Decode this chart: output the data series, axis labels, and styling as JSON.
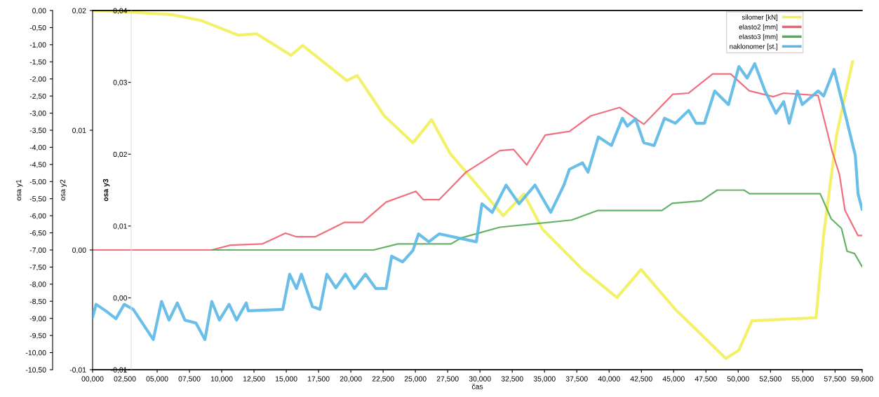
{
  "chart_data": {
    "type": "line",
    "xlabel": "čas",
    "ylabel": "osa y1",
    "y2label": "osa y2",
    "y3label": "osa y3",
    "xlim": [
      0,
      59600
    ],
    "xticks": [
      {
        "value": 0,
        "label": "00,000"
      },
      {
        "value": 2500,
        "label": "02,500"
      },
      {
        "value": 5000,
        "label": "05,000"
      },
      {
        "value": 7500,
        "label": "07,500"
      },
      {
        "value": 10000,
        "label": "10,000"
      },
      {
        "value": 12500,
        "label": "12,500"
      },
      {
        "value": 15000,
        "label": "15,000"
      },
      {
        "value": 17500,
        "label": "17,500"
      },
      {
        "value": 20000,
        "label": "20,000"
      },
      {
        "value": 22500,
        "label": "22,500"
      },
      {
        "value": 25000,
        "label": "25,000"
      },
      {
        "value": 27500,
        "label": "27,500"
      },
      {
        "value": 30000,
        "label": "30,000"
      },
      {
        "value": 32500,
        "label": "32,500"
      },
      {
        "value": 35000,
        "label": "35,000"
      },
      {
        "value": 37500,
        "label": "37,500"
      },
      {
        "value": 40000,
        "label": "40,000"
      },
      {
        "value": 42500,
        "label": "42,500"
      },
      {
        "value": 45000,
        "label": "45,000"
      },
      {
        "value": 47500,
        "label": "47,500"
      },
      {
        "value": 50000,
        "label": "50,000"
      },
      {
        "value": 52500,
        "label": "52,500"
      },
      {
        "value": 55000,
        "label": "55,000"
      },
      {
        "value": 57500,
        "label": "57,500"
      },
      {
        "value": 59600,
        "label": "59,600"
      }
    ],
    "ylim": [
      -10.5,
      0
    ],
    "yticks": [
      {
        "value": 0,
        "label": "0,00"
      },
      {
        "value": -0.5,
        "label": "-0,50"
      },
      {
        "value": -1,
        "label": "-1,00"
      },
      {
        "value": -1.5,
        "label": "-1,50"
      },
      {
        "value": -2,
        "label": "-2,00"
      },
      {
        "value": -2.5,
        "label": "-2,50"
      },
      {
        "value": -3,
        "label": "-3,00"
      },
      {
        "value": -3.5,
        "label": "-3,50"
      },
      {
        "value": -4,
        "label": "-4,00"
      },
      {
        "value": -4.5,
        "label": "-4,50"
      },
      {
        "value": -5,
        "label": "-5,00"
      },
      {
        "value": -5.5,
        "label": "-5,50"
      },
      {
        "value": -6,
        "label": "-6,00"
      },
      {
        "value": -6.5,
        "label": "-6,50"
      },
      {
        "value": -7,
        "label": "-7,00"
      },
      {
        "value": -7.5,
        "label": "-7,50"
      },
      {
        "value": -8,
        "label": "-8,00"
      },
      {
        "value": -8.5,
        "label": "-8,50"
      },
      {
        "value": -9,
        "label": "-9,00"
      },
      {
        "value": -9.5,
        "label": "-9,50"
      },
      {
        "value": -10,
        "label": "-10,00"
      },
      {
        "value": -10.5,
        "label": "-10,50"
      }
    ],
    "y2lim": [
      -0.01,
      0.02
    ],
    "y2ticks": [
      {
        "value": 0.02,
        "label": "0,02"
      },
      {
        "value": 0.01,
        "label": "0,01"
      },
      {
        "value": 0,
        "label": "0,00"
      },
      {
        "value": -0.01,
        "label": "-0,01"
      }
    ],
    "y3lim": [
      -0.01,
      0.04
    ],
    "y3ticks": [
      {
        "value": 0.04,
        "label": "0,04"
      },
      {
        "value": 0.03,
        "label": "0,03"
      },
      {
        "value": 0.02,
        "label": "0,02"
      },
      {
        "value": 0.01,
        "label": "0,01"
      },
      {
        "value": 0,
        "label": "0,00"
      },
      {
        "value": -0.01,
        "label": "-0,01"
      }
    ],
    "legend": "top right",
    "grid": false,
    "marker": "none",
    "line_style": "solid",
    "series": [
      {
        "name": "silomer [kN]",
        "color": "#f2ee5a",
        "x": [
          0,
          2560,
          6140,
          8380,
          11260,
          12700,
          15370,
          16270,
          19690,
          20490,
          22570,
          24810,
          26250,
          27690,
          29130,
          31800,
          33400,
          34840,
          37940,
          40610,
          42480,
          45140,
          49040,
          50050,
          51070,
          56030,
          56620,
          57630,
          58860
        ],
        "values": [
          0,
          -0.04,
          -0.12,
          -0.29,
          -0.72,
          -0.68,
          -1.31,
          -1.02,
          -2.05,
          -1.9,
          -3.07,
          -3.87,
          -3.19,
          -4.18,
          -4.81,
          -6.0,
          -5.36,
          -6.39,
          -7.57,
          -8.39,
          -7.57,
          -8.74,
          -10.17,
          -9.93,
          -9.07,
          -8.98,
          -6.55,
          -3.62,
          -1.49
        ]
      },
      {
        "name": "elasto2 [mm]",
        "color": "#ef6070",
        "axis": "y2",
        "x": [
          0,
          9230,
          10670,
          13130,
          14940,
          15790,
          17240,
          19480,
          20920,
          22730,
          25030,
          25610,
          26840,
          28920,
          31540,
          32600,
          33620,
          35060,
          36930,
          38580,
          40820,
          42690,
          44930,
          46160,
          48020,
          49410,
          50850,
          52720,
          53520,
          56190,
          57260,
          57840,
          58270,
          59280,
          59600
        ],
        "values": [
          0,
          0,
          0.0004,
          0.0005,
          0.0014,
          0.0011,
          0.0011,
          0.0023,
          0.0023,
          0.004,
          0.0049,
          0.0042,
          0.0042,
          0.0065,
          0.0083,
          0.0084,
          0.0071,
          0.0096,
          0.0099,
          0.0112,
          0.0119,
          0.0105,
          0.013,
          0.0131,
          0.0147,
          0.0147,
          0.0133,
          0.0128,
          0.0131,
          0.0129,
          0.0083,
          0.0063,
          0.0033,
          0.0012,
          0.0012
        ]
      },
      {
        "name": "elasto3 [mm]",
        "color": "#55aa55",
        "axis": "y2",
        "x": [
          9230,
          21770,
          23640,
          27740,
          28540,
          31540,
          37100,
          39130,
          44090,
          44890,
          47140,
          48370,
          50450,
          50880,
          56350,
          57200,
          58000,
          58430,
          59010,
          59600
        ],
        "values": [
          0,
          0,
          0.0005,
          0.0005,
          0.001,
          0.0019,
          0.0025,
          0.0033,
          0.0033,
          0.0039,
          0.0041,
          0.005,
          0.005,
          0.0047,
          0.0047,
          0.0026,
          0.0018,
          -0.0001,
          -0.0003,
          -0.0014
        ]
      },
      {
        "name": "naklonomer [st.]",
        "color": "#5ab8e6",
        "axis": "y3",
        "x": [
          0,
          270,
          1010,
          1810,
          2450,
          3150,
          4700,
          5340,
          5920,
          6560,
          7150,
          8000,
          8700,
          9230,
          9820,
          10570,
          11150,
          11900,
          12060,
          14730,
          15260,
          15790,
          16170,
          17020,
          17610,
          18140,
          18840,
          19580,
          20280,
          21130,
          21930,
          22730,
          23160,
          24010,
          24810,
          25240,
          26040,
          26840,
          29720,
          30150,
          30950,
          32020,
          33030,
          34260,
          35480,
          36500,
          36930,
          37940,
          38370,
          39170,
          40180,
          41030,
          41410,
          42050,
          42690,
          43490,
          44290,
          45140,
          46160,
          46740,
          47380,
          48180,
          49250,
          50050,
          50690,
          51280,
          52080,
          52930,
          53520,
          53950,
          54590,
          54960,
          56190,
          56620,
          57420,
          58270,
          59070,
          59280,
          59600
        ],
        "values": [
          -0.0027,
          -0.0009,
          -0.0018,
          -0.0029,
          -0.0009,
          -0.0016,
          -0.0058,
          -0.0005,
          -0.0031,
          -0.0007,
          -0.0031,
          -0.0035,
          -0.0058,
          -0.0005,
          -0.0031,
          -0.0009,
          -0.0031,
          -0.0007,
          -0.0018,
          -0.0016,
          0.0033,
          0.0013,
          0.0033,
          -0.0012,
          -0.0016,
          0.0033,
          0.0014,
          0.0033,
          0.0013,
          0.0033,
          0.0013,
          0.0013,
          0.0058,
          0.005,
          0.0066,
          0.0089,
          0.0078,
          0.0089,
          0.0078,
          0.0131,
          0.0119,
          0.0157,
          0.0131,
          0.0157,
          0.0119,
          0.0157,
          0.0179,
          0.0188,
          0.0175,
          0.0224,
          0.0212,
          0.025,
          0.0239,
          0.0249,
          0.0216,
          0.0212,
          0.025,
          0.0243,
          0.0261,
          0.0243,
          0.0243,
          0.0288,
          0.0269,
          0.0322,
          0.0306,
          0.0326,
          0.0288,
          0.0257,
          0.0273,
          0.0243,
          0.0288,
          0.0269,
          0.0288,
          0.0281,
          0.0318,
          0.0257,
          0.0198,
          0.0145,
          0.0123
        ]
      }
    ]
  }
}
